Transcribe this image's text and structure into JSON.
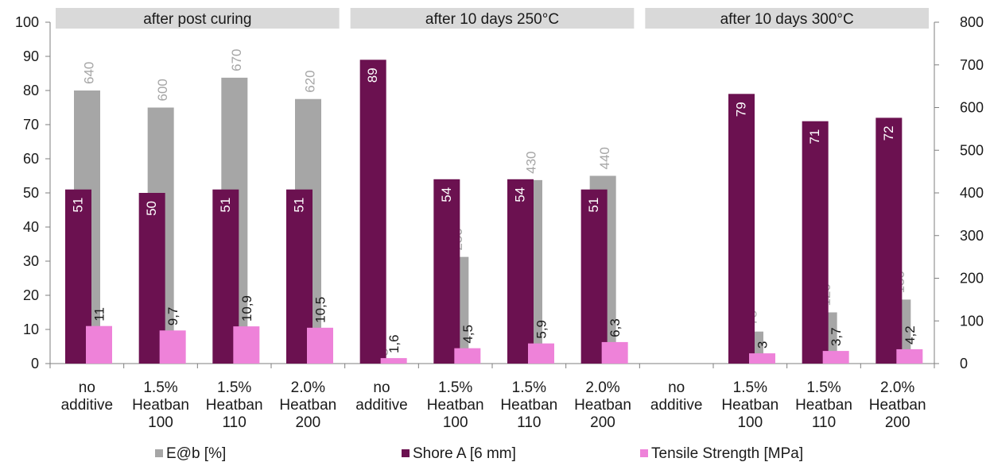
{
  "chart_data": {
    "type": "bar",
    "left_axis": {
      "ylim": [
        0,
        100
      ],
      "ticks": [
        "0",
        "10",
        "20",
        "30",
        "40",
        "50",
        "60",
        "70",
        "80",
        "90",
        "100"
      ]
    },
    "right_axis": {
      "ylim": [
        0,
        800
      ],
      "ticks": [
        "0",
        "100",
        "200",
        "300",
        "400",
        "500",
        "600",
        "700",
        "800"
      ]
    },
    "groups": [
      {
        "header": "after post curing",
        "categories": [
          [
            "no",
            "additive"
          ],
          [
            "1.5%",
            "Heatban",
            "100"
          ],
          [
            "1.5%",
            "Heatban",
            "110"
          ],
          [
            "2.0%",
            "Heatban",
            "200"
          ]
        ]
      },
      {
        "header": "after 10 days 250°C",
        "categories": [
          [
            "no",
            "additive"
          ],
          [
            "1.5%",
            "Heatban",
            "100"
          ],
          [
            "1.5%",
            "Heatban",
            "110"
          ],
          [
            "2.0%",
            "Heatban",
            "200"
          ]
        ]
      },
      {
        "header": "after 10 days 300°C",
        "categories": [
          [
            "no",
            "additive"
          ],
          [
            "1.5%",
            "Heatban",
            "100"
          ],
          [
            "1.5%",
            "Heatban",
            "110"
          ],
          [
            "2.0%",
            "Heatban",
            "200"
          ]
        ]
      }
    ],
    "series": [
      {
        "name": "Shore A [6 mm]",
        "axis": "left",
        "color": "#6b1150",
        "label_color": "#ffffff",
        "values": [
          51,
          50,
          51,
          51,
          89,
          54,
          54,
          51,
          null,
          79,
          71,
          72
        ],
        "labels": [
          "51",
          "50",
          "51",
          "51",
          "89",
          "54",
          "54",
          "51",
          "",
          "79",
          "71",
          "72"
        ]
      },
      {
        "name": "E@b [%]",
        "axis": "right",
        "color": "#a6a6a6",
        "label_color": "#a6a6a6",
        "values": [
          640,
          600,
          670,
          620,
          3,
          250,
          430,
          440,
          null,
          75,
          120,
          150
        ],
        "labels": [
          "640",
          "600",
          "670",
          "620",
          "3",
          "250",
          "430",
          "440",
          "",
          "75",
          "120",
          "150"
        ]
      },
      {
        "name": "Tensile Strength [MPa]",
        "axis": "left",
        "color": "#ee82d9",
        "label_color": "#1a1a1a",
        "values": [
          11,
          9.7,
          10.9,
          10.5,
          1.6,
          4.5,
          5.9,
          6.3,
          null,
          3,
          3.7,
          4.2
        ],
        "labels": [
          "11",
          "9,7",
          "10,9",
          "10,5",
          "1,6",
          "4,5",
          "5,9",
          "6,3",
          "",
          "3",
          "3,7",
          "4,2"
        ]
      }
    ],
    "legend": [
      {
        "name": "E@b [%]",
        "color": "#a6a6a6"
      },
      {
        "name": "Shore A [6 mm]",
        "color": "#6b1150"
      },
      {
        "name": "Tensile Strength [MPa]",
        "color": "#ee82d9"
      }
    ],
    "grid": false,
    "legend_position": "bottom"
  },
  "colors": {
    "header_band": "#d9d9d9",
    "axis": "#7f7f7f"
  }
}
